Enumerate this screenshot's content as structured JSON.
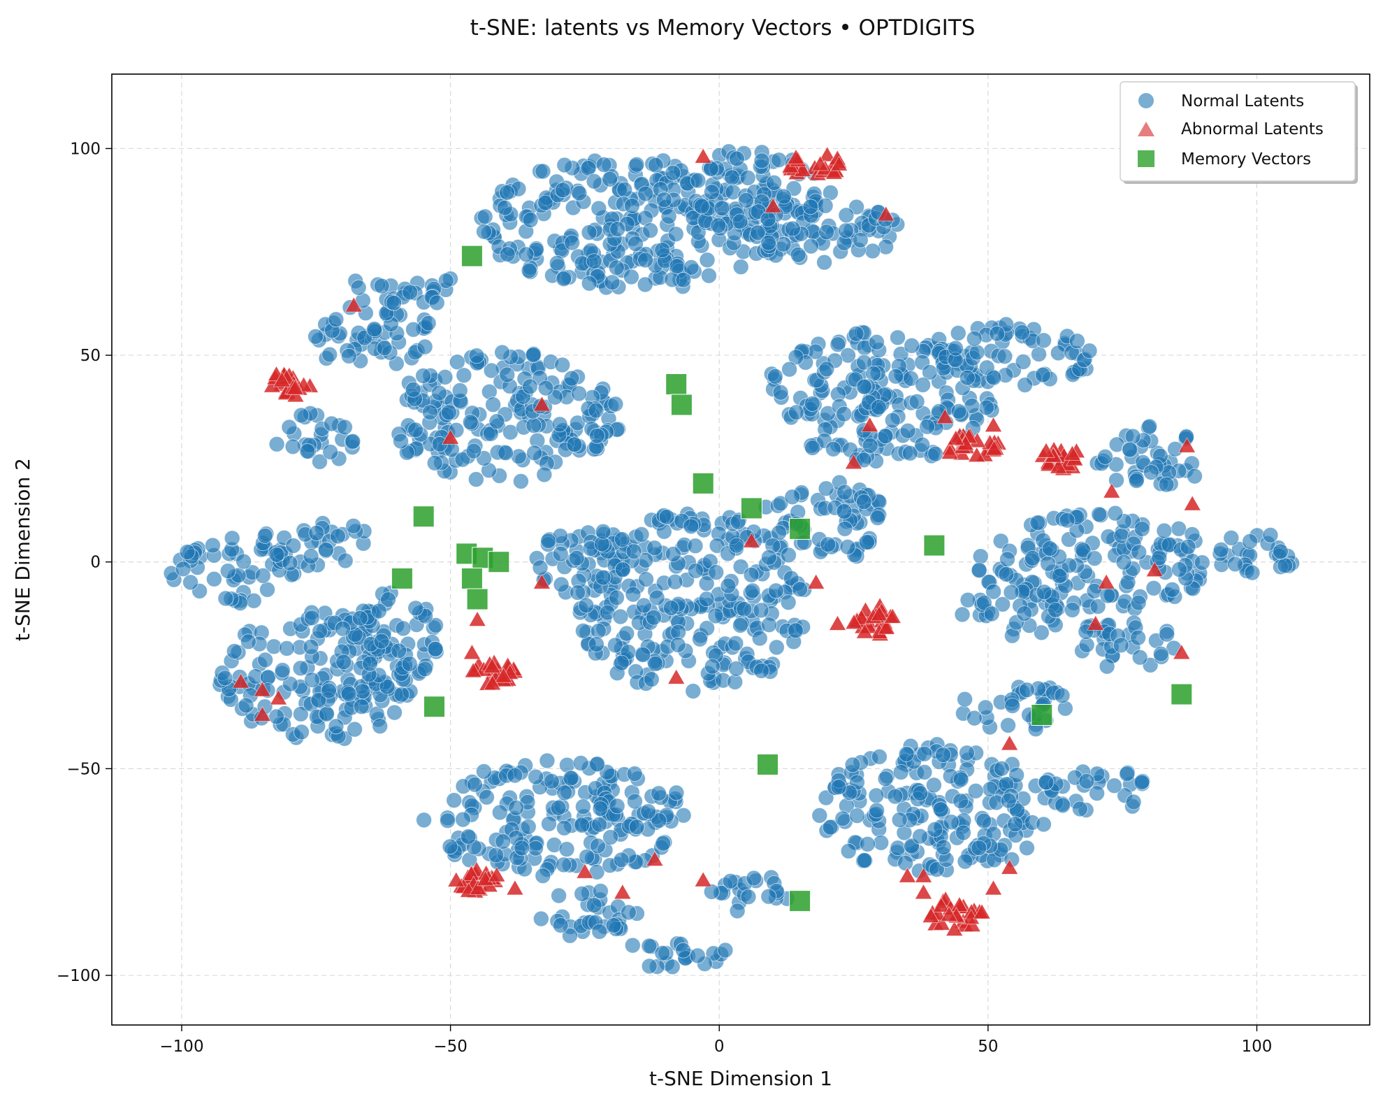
{
  "chart_data": {
    "type": "scatter",
    "title": "t-SNE: latents vs Memory Vectors • OPTDIGITS",
    "xlabel": "t-SNE Dimension 1",
    "ylabel": "t-SNE Dimension 2",
    "xlim": [
      -113,
      121
    ],
    "ylim": [
      -112,
      118
    ],
    "xticks": [
      -100,
      -50,
      0,
      50,
      100
    ],
    "yticks": [
      -100,
      -50,
      0,
      50,
      100
    ],
    "xtick_labels": [
      "−100",
      "−50",
      "0",
      "50",
      "100"
    ],
    "ytick_labels": [
      "−100",
      "−50",
      "0",
      "50",
      "100"
    ],
    "grid": true,
    "legend_position": "top-right",
    "legend": [
      {
        "label": "Normal Latents",
        "marker": "circle",
        "color": "#1f77b4"
      },
      {
        "label": "Abnormal Latents",
        "marker": "triangle",
        "color": "#d62728"
      },
      {
        "label": "Memory Vectors",
        "marker": "square",
        "color": "#2ca02c"
      }
    ],
    "normal_clusters": [
      {
        "cx": -15,
        "cy": 82,
        "rx": 30,
        "ry": 16
      },
      {
        "cx": 5,
        "cy": 90,
        "rx": 16,
        "ry": 10
      },
      {
        "cx": 20,
        "cy": 80,
        "rx": 14,
        "ry": 8
      },
      {
        "cx": -40,
        "cy": 35,
        "rx": 22,
        "ry": 16
      },
      {
        "cx": -65,
        "cy": 55,
        "rx": 12,
        "ry": 8
      },
      {
        "cx": -75,
        "cy": 30,
        "rx": 8,
        "ry": 6
      },
      {
        "cx": -58,
        "cy": 66,
        "rx": 12,
        "ry": 4
      },
      {
        "cx": 30,
        "cy": 40,
        "rx": 22,
        "ry": 16
      },
      {
        "cx": 55,
        "cy": 50,
        "rx": 15,
        "ry": 8
      },
      {
        "cx": 20,
        "cy": 10,
        "rx": 12,
        "ry": 10
      },
      {
        "cx": -90,
        "cy": -2,
        "rx": 12,
        "ry": 8
      },
      {
        "cx": -75,
        "cy": 5,
        "rx": 10,
        "ry": 6
      },
      {
        "cx": -75,
        "cy": -28,
        "rx": 18,
        "ry": 16
      },
      {
        "cx": -62,
        "cy": -18,
        "rx": 10,
        "ry": 12
      },
      {
        "cx": -5,
        "cy": -10,
        "rx": 22,
        "ry": 22
      },
      {
        "cx": -25,
        "cy": 0,
        "rx": 10,
        "ry": 8
      },
      {
        "cx": 70,
        "cy": 0,
        "rx": 22,
        "ry": 12
      },
      {
        "cx": 80,
        "cy": 25,
        "rx": 10,
        "ry": 8
      },
      {
        "cx": 100,
        "cy": 2,
        "rx": 8,
        "ry": 6
      },
      {
        "cx": 55,
        "cy": -12,
        "rx": 10,
        "ry": 6
      },
      {
        "cx": 75,
        "cy": -20,
        "rx": 10,
        "ry": 6
      },
      {
        "cx": -30,
        "cy": -62,
        "rx": 25,
        "ry": 14
      },
      {
        "cx": -25,
        "cy": -85,
        "rx": 10,
        "ry": 6
      },
      {
        "cx": -8,
        "cy": -95,
        "rx": 10,
        "ry": 4
      },
      {
        "cx": 5,
        "cy": -80,
        "rx": 8,
        "ry": 5
      },
      {
        "cx": 40,
        "cy": -60,
        "rx": 22,
        "ry": 16
      },
      {
        "cx": 70,
        "cy": -55,
        "rx": 10,
        "ry": 6
      },
      {
        "cx": 55,
        "cy": -35,
        "rx": 10,
        "ry": 6
      }
    ],
    "abnormal_clusters": [
      {
        "cx": -80,
        "cy": 43,
        "rx": 4,
        "ry": 3
      },
      {
        "cx": 18,
        "cy": 96,
        "rx": 5,
        "ry": 3
      },
      {
        "cx": 47,
        "cy": 28,
        "rx": 5,
        "ry": 3
      },
      {
        "cx": 64,
        "cy": 25,
        "rx": 4,
        "ry": 3
      },
      {
        "cx": 29,
        "cy": -14,
        "rx": 4,
        "ry": 4
      },
      {
        "cx": -42,
        "cy": -27,
        "rx": 4,
        "ry": 3
      },
      {
        "cx": -45,
        "cy": -77,
        "rx": 4,
        "ry": 3
      },
      {
        "cx": 44,
        "cy": -85,
        "rx": 5,
        "ry": 4
      }
    ],
    "abnormal_outliers": [
      [
        -3,
        98
      ],
      [
        10,
        86
      ],
      [
        31,
        84
      ],
      [
        -68,
        62
      ],
      [
        -33,
        38
      ],
      [
        -50,
        30
      ],
      [
        28,
        33
      ],
      [
        42,
        35
      ],
      [
        51,
        33
      ],
      [
        25,
        24
      ],
      [
        73,
        17
      ],
      [
        87,
        28
      ],
      [
        88,
        14
      ],
      [
        -33,
        -5
      ],
      [
        6,
        5
      ],
      [
        18,
        -5
      ],
      [
        22,
        -15
      ],
      [
        72,
        -5
      ],
      [
        81,
        -2
      ],
      [
        70,
        -15
      ],
      [
        86,
        -22
      ],
      [
        -45,
        -14
      ],
      [
        -46,
        -22
      ],
      [
        -8,
        -28
      ],
      [
        -89,
        -29
      ],
      [
        -85,
        -31
      ],
      [
        -85,
        -37
      ],
      [
        -82,
        -33
      ],
      [
        54,
        -44
      ],
      [
        -12,
        -72
      ],
      [
        -25,
        -75
      ],
      [
        -38,
        -79
      ],
      [
        -18,
        -80
      ],
      [
        -3,
        -77
      ],
      [
        35,
        -76
      ],
      [
        38,
        -76
      ],
      [
        38,
        -80
      ],
      [
        51,
        -79
      ],
      [
        54,
        -74
      ]
    ],
    "memory_vectors": [
      [
        -46,
        74
      ],
      [
        -8,
        43
      ],
      [
        -7,
        38
      ],
      [
        -3,
        19
      ],
      [
        6,
        13
      ],
      [
        15,
        8
      ],
      [
        40,
        4
      ],
      [
        -55,
        11
      ],
      [
        -59,
        -4
      ],
      [
        -47,
        2
      ],
      [
        -44,
        1
      ],
      [
        -41,
        0
      ],
      [
        -46,
        -4
      ],
      [
        -45,
        -9
      ],
      [
        -53,
        -35
      ],
      [
        60,
        -37
      ],
      [
        86,
        -32
      ],
      [
        9,
        -49
      ],
      [
        15,
        -82
      ]
    ],
    "normal_points_per_unit_area": 0.17
  }
}
